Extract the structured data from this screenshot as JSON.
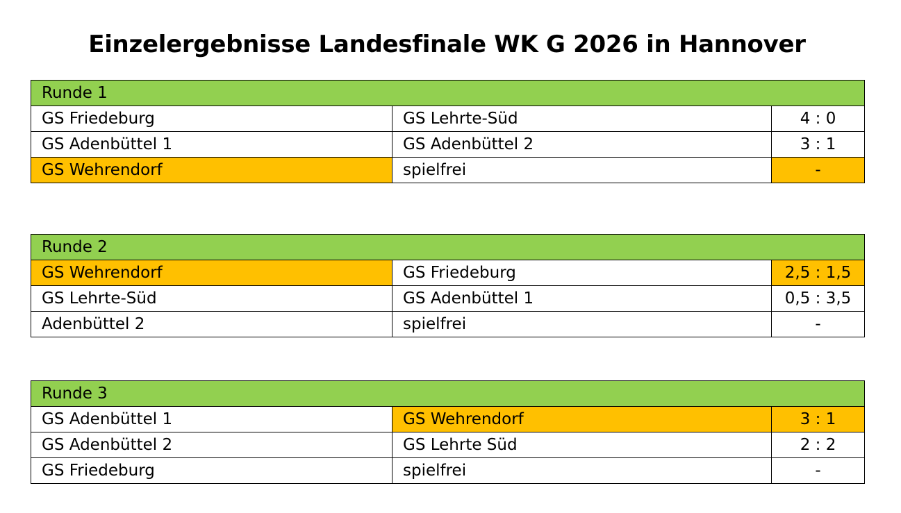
{
  "title": "Einzelergebnisse Landesfinale WK G 2026 in Hannover",
  "colors": {
    "header_green": "#92d050",
    "highlight_orange": "#ffc000"
  },
  "rounds": [
    {
      "label": "Runde 1",
      "matches": [
        {
          "team_a": "GS Friedeburg",
          "team_b": "GS Lehrte-Süd",
          "score": "4 : 0"
        },
        {
          "team_a": "GS Adenbüttel 1",
          "team_b": "GS Adenbüttel 2",
          "score": "3 : 1"
        },
        {
          "team_a": "GS Wehrendorf",
          "team_b": "spielfrei",
          "score": "-"
        }
      ]
    },
    {
      "label": "Runde 2",
      "matches": [
        {
          "team_a": "GS Wehrendorf",
          "team_b": "GS Friedeburg",
          "score": "2,5 : 1,5"
        },
        {
          "team_a": "GS Lehrte-Süd",
          "team_b": "GS Adenbüttel 1",
          "score": "0,5 : 3,5"
        },
        {
          "team_a": "Adenbüttel 2",
          "team_b": "spielfrei",
          "score": "-"
        }
      ]
    },
    {
      "label": "Runde 3",
      "matches": [
        {
          "team_a": "GS Adenbüttel 1",
          "team_b": "GS Wehrendorf",
          "score": "3 : 1"
        },
        {
          "team_a": "GS Adenbüttel 2",
          "team_b": "GS Lehrte Süd",
          "score": "2 : 2"
        },
        {
          "team_a": "GS Friedeburg",
          "team_b": "spielfrei",
          "score": "-"
        }
      ]
    }
  ]
}
